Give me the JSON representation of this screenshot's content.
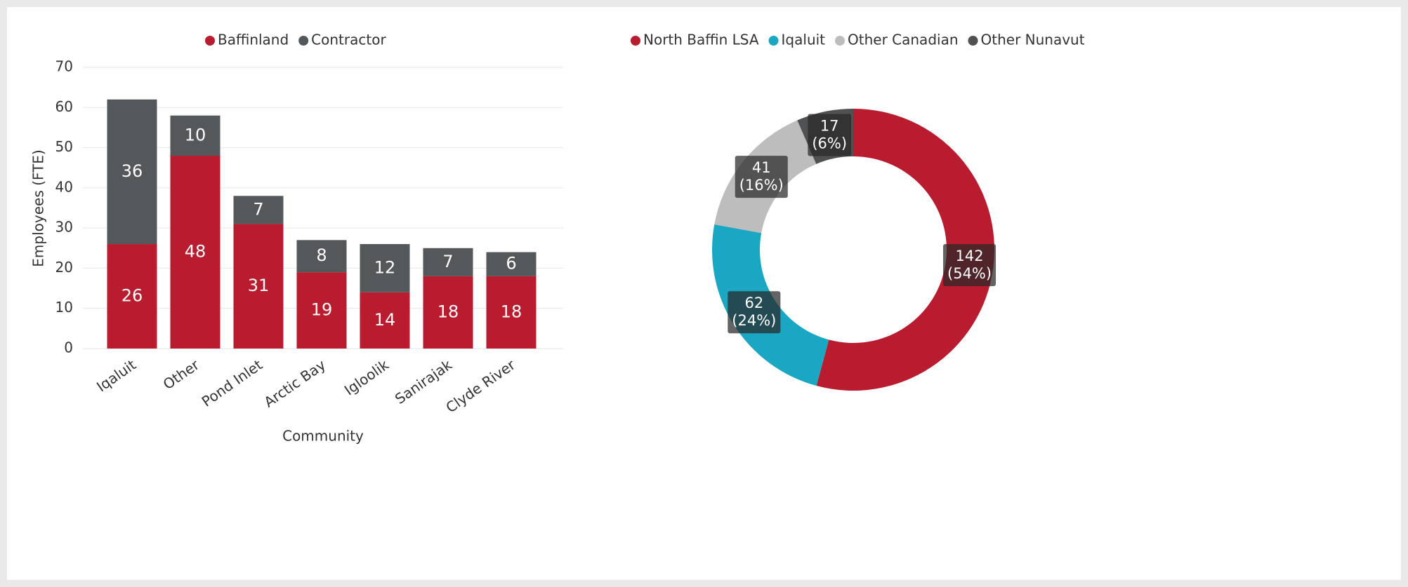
{
  "chart_data": [
    {
      "type": "stacked_bar",
      "x_label": "Community",
      "y_label": "Employees (FTE)",
      "categories": [
        "Iqaluit",
        "Other",
        "Pond Inlet",
        "Arctic Bay",
        "Igloolik",
        "Sanirajak",
        "Clyde River"
      ],
      "series": [
        {
          "name": "Baffinland",
          "color": "#b81c2e",
          "values": [
            26,
            48,
            31,
            19,
            14,
            18,
            18
          ]
        },
        {
          "name": "Contractor",
          "color": "#55585a",
          "values": [
            36,
            10,
            7,
            8,
            12,
            7,
            6
          ]
        }
      ],
      "ylim": [
        0,
        70
      ],
      "yticks": [
        0,
        10,
        20,
        30,
        40,
        50,
        60,
        70
      ],
      "grid": true,
      "legend": "top"
    },
    {
      "type": "donut",
      "categories": [
        "North Baffin LSA",
        "Iqaluit",
        "Other Canadian",
        "Other Nunavut"
      ],
      "values": [
        142,
        62,
        41,
        17
      ],
      "percent_labels": [
        "(54%)",
        "(24%)",
        "(16%)",
        "(6%)"
      ],
      "colors": [
        "#b81c2e",
        "#1aa7c3",
        "#bdbdbd",
        "#4f5153"
      ],
      "legend": "top"
    }
  ]
}
